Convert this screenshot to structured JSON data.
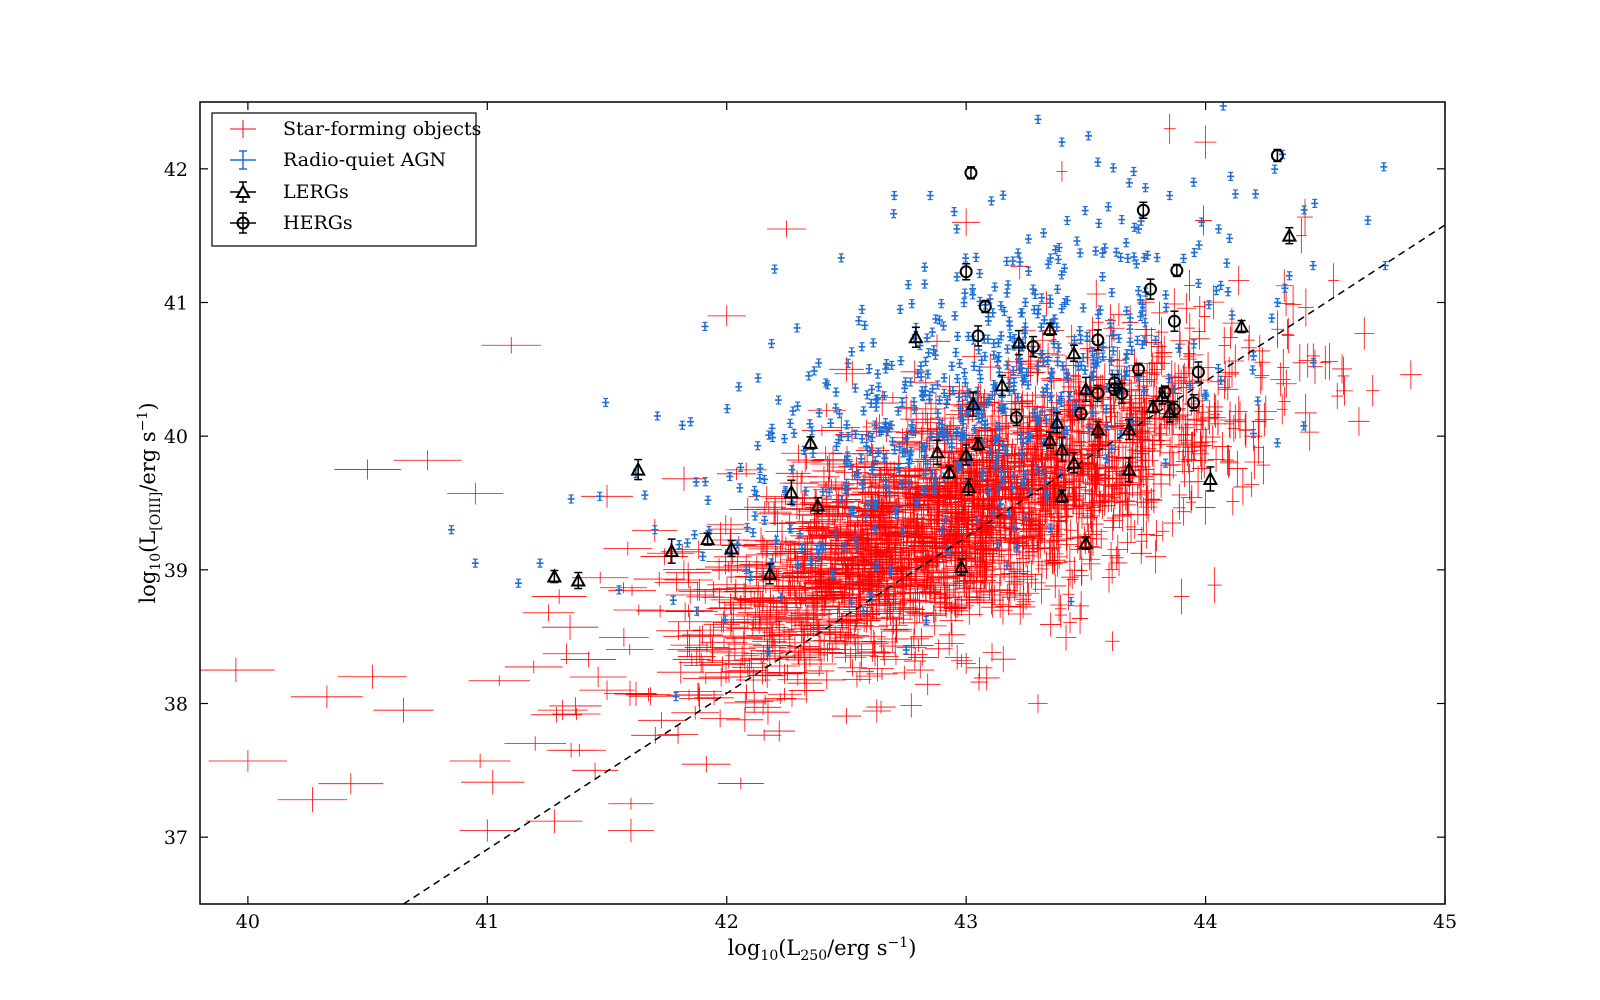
{
  "chart_data": {
    "type": "scatter",
    "title": "",
    "xlabel": "log10(L250/erg s−1)",
    "ylabel": "log10(L[OIII]/erg s−1)",
    "xlabel_parts": {
      "pre": "log",
      "pre_sub": "10",
      "mid": "(L",
      "mid_sub": "250",
      "post": "/erg s",
      "sup": "−1",
      "end": ")"
    },
    "ylabel_parts": {
      "pre": "log",
      "pre_sub": "10",
      "mid": "(L",
      "mid_sub": "[OIII]",
      "post": "/erg s",
      "sup": "−1",
      "end": ")"
    },
    "xlim": [
      39.8,
      45
    ],
    "ylim": [
      36.5,
      42.5
    ],
    "xticks": [
      40,
      41,
      42,
      43,
      44,
      45
    ],
    "yticks": [
      37,
      38,
      39,
      40,
      41,
      42
    ],
    "grid": false,
    "legend_position": "top-left",
    "colors": {
      "star_forming": "#ff0000",
      "rq_agn": "#1f6fd6",
      "lerg": "#000000",
      "herg": "#000000",
      "fit_line": "#000000"
    },
    "fit_line": {
      "style": "dashed",
      "points": [
        [
          40.65,
          36.5
        ],
        [
          45.0,
          41.58
        ]
      ]
    },
    "series": [
      {
        "name": "Star-forming objects",
        "marker": "plus-errorbar",
        "cloud": {
          "count": 2600,
          "seed": 7,
          "x_mean": 43.0,
          "x_sd": 0.55,
          "slope": 0.75,
          "intercept_at_x43": 39.45,
          "y_sd": 0.42
        },
        "points": [
          [
            39.95,
            38.25
          ],
          [
            40.0,
            37.57
          ],
          [
            40.27,
            37.28
          ],
          [
            40.33,
            38.05
          ],
          [
            40.43,
            37.4
          ],
          [
            40.52,
            38.2
          ],
          [
            40.65,
            37.95
          ],
          [
            40.5,
            39.75
          ],
          [
            40.75,
            39.82
          ],
          [
            40.95,
            39.57
          ],
          [
            41.1,
            40.68
          ],
          [
            40.97,
            37.57
          ],
          [
            41.0,
            37.05
          ],
          [
            41.05,
            38.17
          ],
          [
            41.2,
            37.7
          ],
          [
            41.28,
            37.12
          ],
          [
            41.35,
            37.65
          ],
          [
            41.45,
            37.5
          ],
          [
            41.5,
            38.1
          ],
          [
            41.6,
            37.25
          ],
          [
            41.6,
            37.05
          ],
          [
            41.3,
            38.8
          ],
          [
            41.5,
            39.55
          ],
          [
            42.0,
            40.9
          ],
          [
            42.25,
            41.55
          ],
          [
            42.5,
            40.5
          ],
          [
            43.0,
            41.6
          ],
          [
            43.4,
            41.98
          ],
          [
            43.85,
            42.3
          ],
          [
            44.0,
            42.2
          ],
          [
            44.4,
            41.5
          ],
          [
            44.45,
            40.6
          ],
          [
            44.55,
            40.3
          ],
          [
            44.5,
            40.55
          ],
          [
            44.3,
            40.8
          ],
          [
            44.2,
            40.0
          ],
          [
            44.1,
            39.8
          ],
          [
            43.9,
            38.8
          ],
          [
            43.3,
            38.0
          ],
          [
            43.0,
            38.3
          ]
        ]
      },
      {
        "name": "Radio-quiet AGN",
        "marker": "plus-errorbar",
        "cloud": {
          "count": 620,
          "seed": 21,
          "x_mean": 43.05,
          "x_sd": 0.55,
          "slope": 0.8,
          "intercept_at_x43": 40.3,
          "y_sd": 0.55
        },
        "points": [
          [
            40.85,
            39.3
          ],
          [
            40.95,
            39.05
          ],
          [
            41.13,
            38.9
          ],
          [
            41.22,
            39.05
          ],
          [
            41.35,
            39.53
          ],
          [
            41.47,
            39.55
          ],
          [
            41.55,
            38.85
          ],
          [
            41.62,
            39.72
          ],
          [
            42.2,
            41.25
          ],
          [
            42.7,
            41.8
          ],
          [
            42.85,
            41.8
          ],
          [
            42.95,
            41.68
          ],
          [
            43.3,
            42.37
          ],
          [
            43.4,
            42.2
          ],
          [
            43.55,
            42.05
          ],
          [
            43.7,
            41.98
          ],
          [
            43.65,
            41.62
          ],
          [
            43.72,
            41.55
          ],
          [
            43.85,
            41.8
          ],
          [
            43.95,
            41.9
          ],
          [
            44.1,
            41.48
          ],
          [
            44.35,
            41.2
          ],
          [
            44.3,
            41.0
          ],
          [
            44.2,
            40.6
          ],
          [
            44.45,
            40.55
          ],
          [
            44.2,
            40.02
          ],
          [
            44.3,
            39.95
          ],
          [
            42.75,
            38.4
          ],
          [
            42.6,
            38.8
          ],
          [
            42.1,
            38.95
          ],
          [
            41.9,
            39.1
          ],
          [
            41.7,
            39.3
          ]
        ]
      },
      {
        "name": "LERGs",
        "marker": "triangle",
        "points": [
          [
            41.28,
            38.95
          ],
          [
            41.38,
            38.92
          ],
          [
            41.63,
            39.75
          ],
          [
            41.77,
            39.14
          ],
          [
            41.92,
            39.23
          ],
          [
            42.02,
            39.16
          ],
          [
            42.18,
            38.97
          ],
          [
            42.27,
            39.58
          ],
          [
            42.35,
            39.95
          ],
          [
            42.38,
            39.48
          ],
          [
            42.79,
            40.74
          ],
          [
            42.88,
            39.88
          ],
          [
            42.93,
            39.73
          ],
          [
            42.98,
            39.02
          ],
          [
            43.0,
            39.86
          ],
          [
            43.03,
            40.24
          ],
          [
            43.05,
            39.94
          ],
          [
            43.01,
            39.62
          ],
          [
            43.15,
            40.38
          ],
          [
            43.22,
            40.7
          ],
          [
            43.35,
            40.8
          ],
          [
            43.35,
            39.97
          ],
          [
            43.38,
            40.1
          ],
          [
            43.4,
            39.9
          ],
          [
            43.4,
            39.55
          ],
          [
            43.45,
            40.62
          ],
          [
            43.45,
            39.8
          ],
          [
            43.5,
            40.35
          ],
          [
            43.5,
            39.2
          ],
          [
            43.55,
            40.05
          ],
          [
            43.68,
            40.05
          ],
          [
            43.68,
            39.75
          ],
          [
            43.78,
            40.22
          ],
          [
            43.82,
            40.3
          ],
          [
            43.85,
            40.18
          ],
          [
            44.02,
            39.68
          ],
          [
            44.15,
            40.82
          ],
          [
            44.35,
            41.5
          ]
        ]
      },
      {
        "name": "HERGs",
        "marker": "circle",
        "points": [
          [
            43.02,
            41.97
          ],
          [
            43.0,
            41.23
          ],
          [
            43.05,
            40.75
          ],
          [
            43.08,
            40.97
          ],
          [
            43.21,
            40.14
          ],
          [
            43.28,
            40.67
          ],
          [
            43.48,
            40.17
          ],
          [
            43.55,
            40.32
          ],
          [
            43.55,
            40.72
          ],
          [
            43.62,
            40.35
          ],
          [
            43.62,
            40.4
          ],
          [
            43.65,
            40.32
          ],
          [
            43.72,
            40.5
          ],
          [
            43.74,
            41.69
          ],
          [
            43.77,
            41.1
          ],
          [
            43.83,
            40.33
          ],
          [
            43.87,
            40.2
          ],
          [
            43.87,
            40.86
          ],
          [
            43.88,
            41.24
          ],
          [
            43.95,
            40.25
          ],
          [
            43.97,
            40.48
          ],
          [
            44.3,
            42.1
          ]
        ]
      }
    ]
  }
}
